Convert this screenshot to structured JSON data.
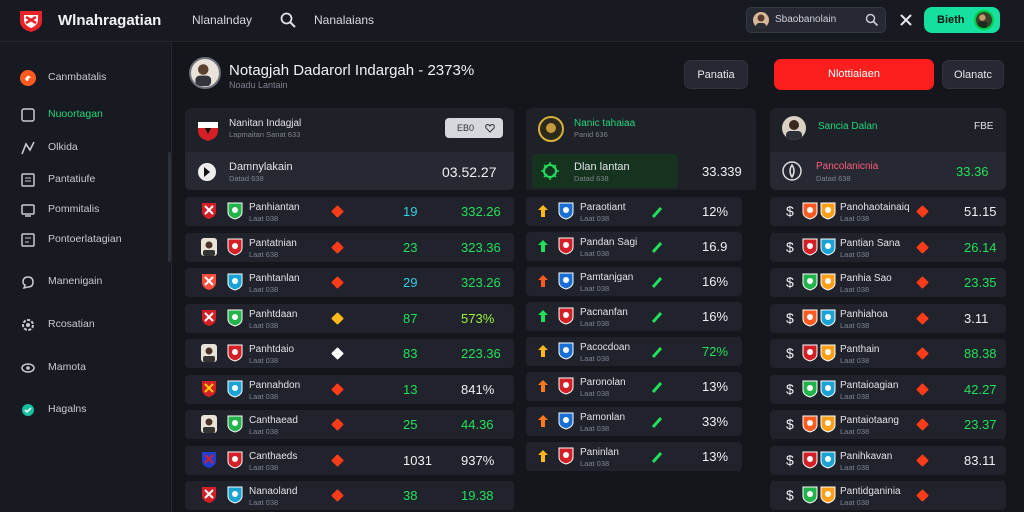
{
  "topbar": {
    "brand": "Wlnahragatian",
    "nav_1": "Nlanalnday",
    "nav_2": "Nanalaians",
    "user_name": "Sbaobanolain",
    "cta_label": "Bieth"
  },
  "sidebar": {
    "items": [
      {
        "label": "Canmbatalis",
        "icon": "fire-icon"
      },
      {
        "label": "Nuoortagan",
        "icon": "square-icon"
      },
      {
        "label": "Olkida",
        "icon": "stats-icon"
      },
      {
        "label": "Pantatiufe",
        "icon": "document-icon"
      },
      {
        "label": "Pommitalis",
        "icon": "monitor-icon"
      },
      {
        "label": "Pontoerlatagian",
        "icon": "list-icon"
      },
      {
        "label": "Manenigain",
        "icon": "chat-icon"
      },
      {
        "label": "Rcosatian",
        "icon": "settings-icon"
      },
      {
        "label": "Mamota",
        "icon": "eye-icon"
      },
      {
        "label": "Hagalns",
        "icon": "shield-icon"
      }
    ]
  },
  "header": {
    "title": "Notagjah Dadarorl Indargah - 2373%",
    "subtitle": "Noadu Lantain",
    "btn_1": "Panatia",
    "btn_red": "Nlottiaiaen",
    "btn_2": "Olanatc"
  },
  "col1": {
    "head_title": "Nanitan Indagjal",
    "head_sub": "Lapmaitan Sanat 633",
    "head_input": "EB0",
    "sub_title": "Damnylakain",
    "sub_caption": "Datad 638",
    "sub_value": "03.52.27",
    "rows": [
      {
        "name": "Panhiantan",
        "sub": "Laat 038",
        "mid": "19",
        "val": "332.26",
        "mid_color": "cyan",
        "val_color": "green"
      },
      {
        "name": "Pantatnian",
        "sub": "Laat 638",
        "mid": "23",
        "val": "323.36",
        "mid_color": "green",
        "val_color": "green"
      },
      {
        "name": "Panhtanlan",
        "sub": "Laat 038",
        "mid": "29",
        "val": "323.26",
        "mid_color": "cyan",
        "val_color": "green"
      },
      {
        "name": "Panhtdaan",
        "sub": "Laat 038",
        "mid": "87",
        "val": "573%",
        "mid_color": "green",
        "val_color": "lime"
      },
      {
        "name": "Panhtdaio",
        "sub": "Laat 038",
        "mid": "83",
        "val": "223.36",
        "mid_color": "green",
        "val_color": "green"
      },
      {
        "name": "Pannahdon",
        "sub": "Laat 038",
        "mid": "13",
        "val": "841%",
        "mid_color": "green",
        "val_color": "white"
      },
      {
        "name": "Canthaead",
        "sub": "Laat 038",
        "mid": "25",
        "val": "44.36",
        "mid_color": "green",
        "val_color": "green"
      },
      {
        "name": "Canthaeds",
        "sub": "Laat 038",
        "mid": "1031",
        "val": "937%",
        "mid_color": "white",
        "val_color": "white"
      },
      {
        "name": "Nanaoland",
        "sub": "Laat 038",
        "mid": "38",
        "val": "19.38",
        "mid_color": "green",
        "val_color": "green"
      }
    ]
  },
  "col2": {
    "head_title": "Nanic tahaiaa",
    "head_sub": "Panid 636",
    "sub_title": "Dlan lantan",
    "sub_caption": "Datad 638",
    "sub_value": "33.339",
    "rows": [
      {
        "name": "Paraotiant",
        "sub": "Laat 038",
        "val": "12%"
      },
      {
        "name": "Pandan Sagi",
        "sub": "Laat 038",
        "val": "16.9"
      },
      {
        "name": "Pamtanjgan",
        "sub": "Laat 038",
        "val": "16%"
      },
      {
        "name": "Pacnanfan",
        "sub": "Laat 038",
        "val": "16%"
      },
      {
        "name": "Pacocdoan",
        "sub": "Laat 038",
        "val": "72%",
        "val_color": "green"
      },
      {
        "name": "Paronolan",
        "sub": "Laat 038",
        "val": "13%"
      },
      {
        "name": "Pamonlan",
        "sub": "Laat 038",
        "val": "33%"
      },
      {
        "name": "Paninlan",
        "sub": "Laat 038",
        "val": "13%"
      }
    ]
  },
  "col3": {
    "head_title": "Sancia Dalan",
    "head_value": "FBE",
    "sub_title": "Pancolanicnia",
    "sub_caption": "Datad 638",
    "sub_value": "33.36",
    "rows": [
      {
        "name": "Panohaotainaiq",
        "sub": "Laat 038",
        "val": "51.15",
        "val_color": "white"
      },
      {
        "name": "Pantian Sana",
        "sub": "Laat 038",
        "val": "26.14",
        "val_color": "green"
      },
      {
        "name": "Panhia Sao",
        "sub": "Laat 038",
        "val": "23.35",
        "val_color": "green"
      },
      {
        "name": "Panhiahoa",
        "sub": "Laat 038",
        "val": "3.11",
        "val_color": "white"
      },
      {
        "name": "Panthain",
        "sub": "Laat 038",
        "val": "88.38",
        "val_color": "green"
      },
      {
        "name": "Pantaioagian",
        "sub": "Laat 038",
        "val": "42.27",
        "val_color": "green"
      },
      {
        "name": "Pantaiotaang",
        "sub": "Laat 038",
        "val": "23.37",
        "val_color": "green"
      },
      {
        "name": "Panihkavan",
        "sub": "Laat 038",
        "val": "83.11",
        "val_color": "white"
      },
      {
        "name": "Pantidganinia",
        "sub": "Laat 038",
        "val": ""
      }
    ]
  }
}
